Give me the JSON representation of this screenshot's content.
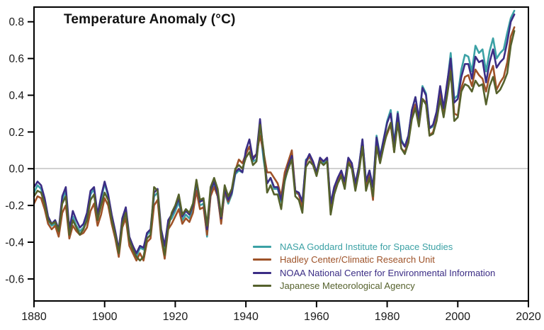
{
  "title": "Temperature Anomaly (°C)",
  "chart_data": {
    "type": "line",
    "title": "Temperature Anomaly (°C)",
    "xlabel": "",
    "ylabel": "",
    "xlim": [
      1880,
      2020
    ],
    "ylim": [
      -0.72,
      0.88
    ],
    "x_ticks": [
      1880,
      1900,
      1920,
      1940,
      1960,
      1980,
      2000,
      2020
    ],
    "y_ticks": [
      0.8,
      0.6,
      0.4,
      0.2,
      0.0,
      -0.2,
      -0.4,
      -0.6
    ],
    "grid": false,
    "zero_line": true,
    "zero_line_color": "#c2c2c2",
    "frame_color": "#000000",
    "legend_position": "inside-bottom-right",
    "year_start": 1880,
    "year_end": 2016,
    "series": [
      {
        "name": "NASA Goddard Institute for Space Studies",
        "color": "#3ba1a5",
        "values": [
          -0.13,
          -0.09,
          -0.11,
          -0.18,
          -0.28,
          -0.31,
          -0.3,
          -0.35,
          -0.17,
          -0.12,
          -0.35,
          -0.26,
          -0.31,
          -0.34,
          -0.32,
          -0.25,
          -0.14,
          -0.11,
          -0.27,
          -0.17,
          -0.08,
          -0.15,
          -0.27,
          -0.36,
          -0.46,
          -0.28,
          -0.22,
          -0.38,
          -0.42,
          -0.48,
          -0.43,
          -0.44,
          -0.36,
          -0.34,
          -0.15,
          -0.13,
          -0.35,
          -0.45,
          -0.29,
          -0.27,
          -0.23,
          -0.18,
          -0.28,
          -0.25,
          -0.27,
          -0.22,
          -0.09,
          -0.2,
          -0.19,
          -0.37,
          -0.14,
          -0.09,
          -0.15,
          -0.29,
          -0.13,
          -0.19,
          -0.14,
          -0.03,
          -0.01,
          -0.02,
          0.08,
          0.12,
          0.04,
          0.05,
          0.22,
          0.05,
          -0.08,
          -0.05,
          -0.11,
          -0.11,
          -0.18,
          -0.07,
          0.01,
          0.08,
          -0.13,
          -0.14,
          -0.2,
          0.05,
          0.06,
          0.03,
          -0.03,
          0.06,
          0.03,
          0.05,
          -0.2,
          -0.11,
          -0.06,
          -0.02,
          -0.08,
          0.05,
          0.02,
          -0.08,
          0.01,
          0.16,
          -0.07,
          -0.01,
          -0.1,
          0.18,
          0.07,
          0.16,
          0.26,
          0.32,
          0.14,
          0.31,
          0.16,
          0.12,
          0.18,
          0.32,
          0.39,
          0.27,
          0.45,
          0.41,
          0.22,
          0.23,
          0.31,
          0.44,
          0.33,
          0.46,
          0.63,
          0.38,
          0.4,
          0.54,
          0.62,
          0.61,
          0.53,
          0.67,
          0.63,
          0.65,
          0.53,
          0.64,
          0.71,
          0.6,
          0.63,
          0.65,
          0.74,
          0.82,
          0.86
        ]
      },
      {
        "name": "Hadley Center/Climatic Research Unit",
        "color": "#9e5228",
        "values": [
          -0.19,
          -0.15,
          -0.16,
          -0.22,
          -0.3,
          -0.33,
          -0.31,
          -0.37,
          -0.24,
          -0.2,
          -0.38,
          -0.31,
          -0.34,
          -0.36,
          -0.35,
          -0.32,
          -0.23,
          -0.19,
          -0.31,
          -0.25,
          -0.16,
          -0.2,
          -0.3,
          -0.38,
          -0.48,
          -0.32,
          -0.27,
          -0.42,
          -0.46,
          -0.5,
          -0.46,
          -0.5,
          -0.4,
          -0.38,
          -0.2,
          -0.17,
          -0.38,
          -0.49,
          -0.33,
          -0.3,
          -0.26,
          -0.22,
          -0.3,
          -0.27,
          -0.29,
          -0.24,
          -0.12,
          -0.22,
          -0.21,
          -0.36,
          -0.15,
          -0.1,
          -0.15,
          -0.3,
          -0.12,
          -0.18,
          -0.13,
          -0.01,
          0.05,
          0.03,
          0.08,
          0.12,
          0.06,
          0.08,
          0.18,
          0.09,
          -0.02,
          -0.02,
          -0.05,
          -0.08,
          -0.15,
          -0.02,
          0.04,
          0.1,
          -0.12,
          -0.14,
          -0.21,
          0.03,
          0.07,
          0.03,
          -0.02,
          0.05,
          0.04,
          0.06,
          -0.21,
          -0.12,
          -0.07,
          -0.03,
          -0.08,
          0.04,
          0.01,
          -0.1,
          0.0,
          0.14,
          -0.1,
          -0.03,
          -0.17,
          0.13,
          0.04,
          0.14,
          0.19,
          0.24,
          0.09,
          0.28,
          0.11,
          0.09,
          0.15,
          0.29,
          0.35,
          0.24,
          0.38,
          0.36,
          0.18,
          0.2,
          0.27,
          0.42,
          0.3,
          0.43,
          0.56,
          0.3,
          0.29,
          0.44,
          0.5,
          0.51,
          0.45,
          0.54,
          0.51,
          0.49,
          0.42,
          0.51,
          0.56,
          0.43,
          0.47,
          0.5,
          0.58,
          0.72,
          0.77
        ]
      },
      {
        "name": "NOAA National Center for Environmental Information",
        "color": "#3b2d85",
        "values": [
          -0.1,
          -0.07,
          -0.09,
          -0.16,
          -0.26,
          -0.3,
          -0.28,
          -0.33,
          -0.15,
          -0.1,
          -0.33,
          -0.23,
          -0.28,
          -0.32,
          -0.3,
          -0.24,
          -0.12,
          -0.1,
          -0.25,
          -0.15,
          -0.07,
          -0.14,
          -0.25,
          -0.34,
          -0.44,
          -0.27,
          -0.21,
          -0.37,
          -0.42,
          -0.46,
          -0.42,
          -0.43,
          -0.35,
          -0.33,
          -0.13,
          -0.11,
          -0.33,
          -0.42,
          -0.28,
          -0.25,
          -0.21,
          -0.16,
          -0.26,
          -0.23,
          -0.25,
          -0.2,
          -0.07,
          -0.18,
          -0.17,
          -0.33,
          -0.12,
          -0.07,
          -0.14,
          -0.27,
          -0.11,
          -0.17,
          -0.13,
          -0.02,
          0.0,
          -0.02,
          0.1,
          0.16,
          0.05,
          0.08,
          0.27,
          0.08,
          -0.08,
          -0.05,
          -0.1,
          -0.1,
          -0.17,
          -0.06,
          0.02,
          0.07,
          -0.12,
          -0.13,
          -0.18,
          0.04,
          0.08,
          0.04,
          -0.02,
          0.06,
          0.04,
          0.06,
          -0.19,
          -0.1,
          -0.05,
          -0.01,
          -0.07,
          0.06,
          0.03,
          -0.08,
          0.01,
          0.16,
          -0.07,
          -0.01,
          -0.1,
          0.17,
          0.06,
          0.16,
          0.25,
          0.3,
          0.13,
          0.3,
          0.15,
          0.12,
          0.18,
          0.32,
          0.39,
          0.27,
          0.44,
          0.4,
          0.22,
          0.24,
          0.31,
          0.45,
          0.33,
          0.47,
          0.6,
          0.36,
          0.38,
          0.5,
          0.57,
          0.57,
          0.49,
          0.61,
          0.58,
          0.59,
          0.47,
          0.58,
          0.65,
          0.55,
          0.58,
          0.6,
          0.69,
          0.8,
          0.84
        ]
      },
      {
        "name": "Japanese Meteorological Agency",
        "color": "#55612c",
        "values": [
          -0.15,
          -0.12,
          -0.13,
          -0.19,
          -0.28,
          -0.3,
          -0.29,
          -0.34,
          -0.19,
          -0.15,
          -0.36,
          -0.28,
          -0.32,
          -0.36,
          -0.33,
          -0.28,
          -0.17,
          -0.14,
          -0.28,
          -0.2,
          -0.13,
          -0.17,
          -0.28,
          -0.36,
          -0.46,
          -0.3,
          -0.24,
          -0.39,
          -0.44,
          -0.48,
          -0.5,
          -0.48,
          -0.38,
          -0.36,
          -0.1,
          -0.12,
          -0.36,
          -0.47,
          -0.32,
          -0.24,
          -0.2,
          -0.14,
          -0.25,
          -0.22,
          -0.24,
          -0.19,
          -0.06,
          -0.17,
          -0.16,
          -0.31,
          -0.1,
          -0.05,
          -0.11,
          -0.26,
          -0.09,
          -0.15,
          -0.11,
          0.0,
          0.02,
          0.0,
          0.06,
          0.09,
          0.02,
          0.04,
          0.24,
          0.1,
          -0.13,
          -0.09,
          -0.14,
          -0.14,
          -0.22,
          -0.06,
          0.0,
          0.05,
          -0.15,
          -0.17,
          -0.24,
          0.01,
          0.04,
          0.02,
          -0.04,
          0.04,
          0.02,
          0.04,
          -0.25,
          -0.14,
          -0.08,
          -0.04,
          -0.11,
          0.03,
          0.0,
          -0.12,
          -0.02,
          0.12,
          -0.12,
          -0.05,
          -0.15,
          0.12,
          0.03,
          0.12,
          0.2,
          0.25,
          0.09,
          0.25,
          0.11,
          0.08,
          0.14,
          0.27,
          0.33,
          0.23,
          0.38,
          0.35,
          0.18,
          0.19,
          0.26,
          0.38,
          0.28,
          0.4,
          0.53,
          0.26,
          0.28,
          0.42,
          0.46,
          0.45,
          0.42,
          0.48,
          0.45,
          0.46,
          0.35,
          0.45,
          0.5,
          0.41,
          0.43,
          0.47,
          0.52,
          0.67,
          0.75
        ]
      }
    ]
  }
}
